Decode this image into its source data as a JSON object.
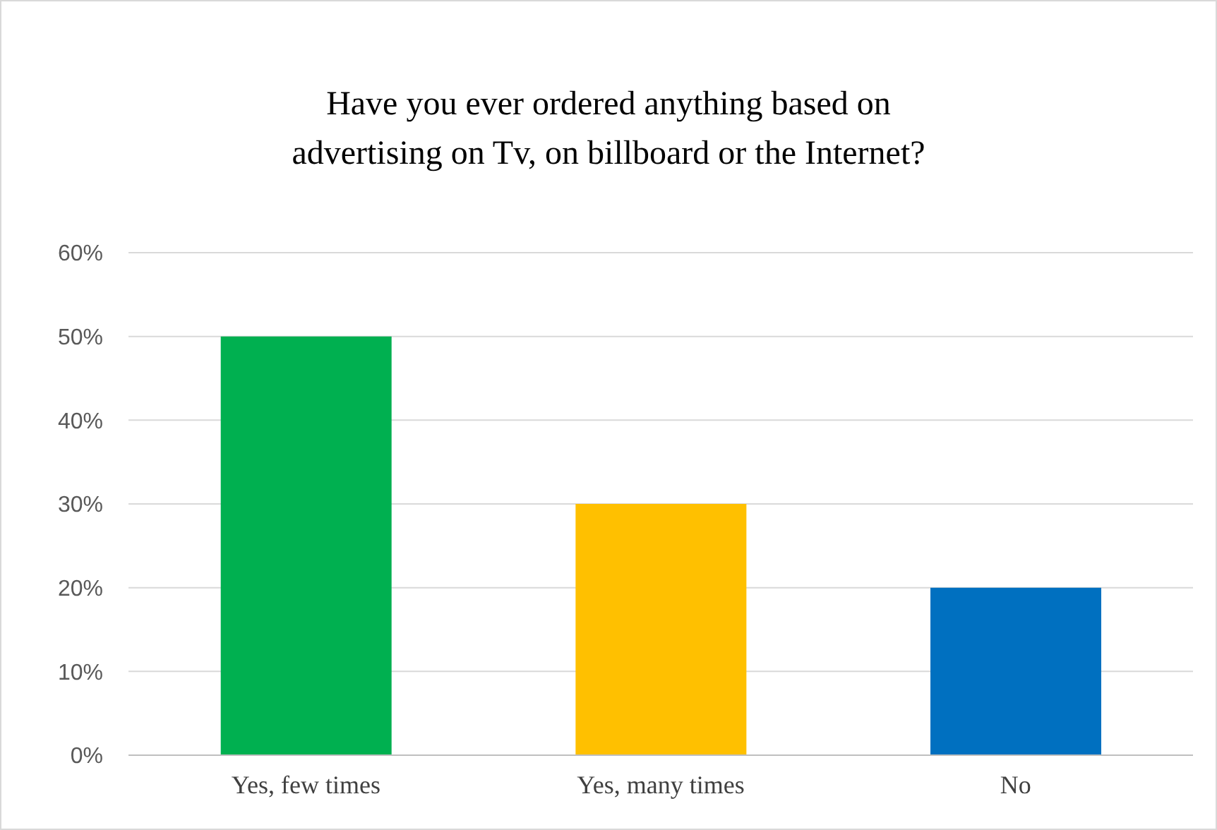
{
  "chart_data": {
    "type": "bar",
    "title": "Have you ever ordered anything based on\nadvertising on Tv, on billboard or the Internet?",
    "categories": [
      "Yes, few times",
      "Yes, many times",
      "No"
    ],
    "values": [
      50,
      30,
      20
    ],
    "colors": [
      "#00b050",
      "#ffc000",
      "#0070c0"
    ],
    "ylim": [
      0,
      60
    ],
    "yticks": [
      {
        "value": 0,
        "label": "0%"
      },
      {
        "value": 10,
        "label": "10%"
      },
      {
        "value": 20,
        "label": "20%"
      },
      {
        "value": 30,
        "label": "30%"
      },
      {
        "value": 40,
        "label": "40%"
      },
      {
        "value": 50,
        "label": "50%"
      },
      {
        "value": 60,
        "label": "60%"
      }
    ],
    "grid": "y"
  }
}
